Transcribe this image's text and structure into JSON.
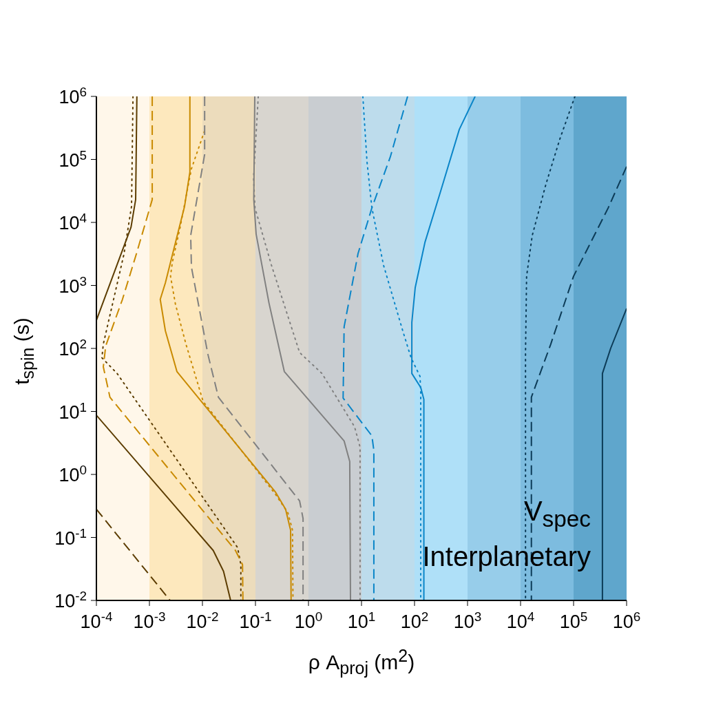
{
  "chart_data": {
    "type": "line",
    "xlabel": "ρ A$_{proj}$ (m$^{2}$)",
    "ylabel": "t$_{spin}$ (s)",
    "log": "xy",
    "xlim": [
      0.0001,
      1000000
    ],
    "ylim": [
      0.01,
      1000000
    ],
    "xticks": [
      {
        "value": 0.0001,
        "label": "10$^{-4}$"
      },
      {
        "value": 0.001,
        "label": "10$^{-3}$"
      },
      {
        "value": 0.01,
        "label": "10$^{-2}$"
      },
      {
        "value": 0.1,
        "label": "10$^{-1}$"
      },
      {
        "value": 1,
        "label": "10$^{0}$"
      },
      {
        "value": 10,
        "label": "10$^{1}$"
      },
      {
        "value": 100,
        "label": "10$^{2}$"
      },
      {
        "value": 1000,
        "label": "10$^{3}$"
      },
      {
        "value": 10000,
        "label": "10$^{4}$"
      },
      {
        "value": 100000,
        "label": "10$^{5}$"
      },
      {
        "value": 1000000,
        "label": "10$^{6}$"
      }
    ],
    "yticks": [
      {
        "value": 0.01,
        "label": "10$^{-2}$"
      },
      {
        "value": 0.1,
        "label": "10$^{-1}$"
      },
      {
        "value": 1,
        "label": "10$^{0}$"
      },
      {
        "value": 10,
        "label": "10$^{1}$"
      },
      {
        "value": 100,
        "label": "10$^{2}$"
      },
      {
        "value": 1000,
        "label": "10$^{3}$"
      },
      {
        "value": 10000,
        "label": "10$^{4}$"
      },
      {
        "value": 100000,
        "label": "10$^{5}$"
      },
      {
        "value": 1000000,
        "label": "10$^{6}$"
      }
    ],
    "bands": [
      {
        "axis": "x",
        "from": 0.0001,
        "to": 0.001,
        "color": "#fff7ea"
      },
      {
        "axis": "x",
        "from": 0.001,
        "to": 0.01,
        "color": "#fde8bd"
      },
      {
        "axis": "x",
        "from": 0.01,
        "to": 0.1,
        "color": "#ecdcbc"
      },
      {
        "axis": "x",
        "from": 0.1,
        "to": 1,
        "color": "#d8d5cf"
      },
      {
        "axis": "x",
        "from": 1,
        "to": 10,
        "color": "#c9cdd1"
      },
      {
        "axis": "x",
        "from": 10,
        "to": 100,
        "color": "#bddcec"
      },
      {
        "axis": "x",
        "from": 100,
        "to": 1000,
        "color": "#afe0f8"
      },
      {
        "axis": "x",
        "from": 1000,
        "to": 10000,
        "color": "#97cdea"
      },
      {
        "axis": "x",
        "from": 10000,
        "to": 100000,
        "color": "#7dbcdf"
      },
      {
        "axis": "x",
        "from": 100000,
        "to": 1000000,
        "color": "#5fa6cc"
      }
    ],
    "annotations": [
      "V$_{spec}$",
      "Interplanetary"
    ],
    "series": [
      {
        "color": "#5c3c00",
        "line_style": "solid",
        "x": [
          0.00058,
          0.00055,
          0.00045,
          0.0001
        ],
        "values": [
          1000000,
          23000,
          8400,
          280
        ]
      },
      {
        "color": "#5c3c00",
        "line_style": "solid",
        "x": [
          0.0001,
          0.016,
          0.025,
          0.034
        ],
        "values": [
          8.7,
          0.062,
          0.029,
          0.01
        ]
      },
      {
        "color": "#5c3c00",
        "line_style": "dotted",
        "x": [
          0.00049,
          0.00046,
          0.00033,
          0.000135,
          0.000127,
          0.000246,
          0.046,
          0.053,
          0.053
        ],
        "values": [
          1000000,
          18000,
          3100,
          117,
          71,
          40,
          0.069,
          0.037,
          0.01
        ]
      },
      {
        "color": "#5c3c00",
        "line_style": "dashed",
        "x": [
          0.0001,
          0.00245
        ],
        "values": [
          0.28,
          0.01
        ]
      },
      {
        "color": "#c98a00",
        "line_style": "solid",
        "x": [
          0.0058,
          0.0058,
          0.0046,
          0.002,
          0.0016,
          0.002,
          0.0033,
          0.24,
          0.37,
          0.46,
          0.47
        ],
        "values": [
          1000000,
          63000,
          18000,
          1100,
          600,
          190,
          43,
          0.52,
          0.28,
          0.13,
          0.01
        ]
      },
      {
        "color": "#c98a00",
        "line_style": "dotted",
        "x": [
          0.0109,
          0.0062,
          0.0038,
          0.0027,
          0.0025,
          0.0031,
          0.0049,
          0.0103,
          0.24,
          0.41,
          0.5,
          0.51
        ],
        "values": [
          280000,
          71000,
          8400,
          2300,
          1400,
          500,
          116,
          14.4,
          0.48,
          0.245,
          0.13,
          0.01
        ]
      },
      {
        "color": "#c98a00",
        "line_style": "dashed",
        "x": [
          0.00113,
          0.00113,
          0.00057,
          0.00031,
          0.00015,
          0.000135,
          0.00018,
          0.042,
          0.057,
          0.058
        ],
        "values": [
          1000000,
          23000,
          3200,
          600,
          110,
          51,
          16.8,
          0.062,
          0.037,
          0.01
        ]
      },
      {
        "color": "#808080",
        "line_style": "solid",
        "x": [
          0.097,
          0.093,
          0.103,
          0.18,
          0.35,
          4.7,
          6,
          6.2
        ],
        "values": [
          1000000,
          23000,
          6500,
          525,
          43,
          3.4,
          1.6,
          0.01
        ]
      },
      {
        "color": "#808080",
        "line_style": "dotted",
        "x": [
          0.113,
          0.092,
          0.098,
          0.2,
          0.68,
          1.8,
          7.4,
          9.4,
          9.4
        ],
        "values": [
          1000000,
          51000,
          17000,
          2100,
          86,
          40,
          5.7,
          2.7,
          0.01
        ]
      },
      {
        "color": "#808080",
        "line_style": "dashed",
        "x": [
          0.011,
          0.011,
          0.006,
          0.0062,
          0.0127,
          0.02,
          0.68,
          0.79,
          0.79
        ],
        "values": [
          1000000,
          120000,
          6200,
          1950,
          80,
          16.8,
          0.38,
          0.2,
          0.01
        ]
      },
      {
        "color": "#0a85c8",
        "line_style": "dotted",
        "x": [
          10.6,
          12.7,
          15.7,
          26,
          60,
          86,
          127,
          131,
          131
        ],
        "values": [
          1000000,
          92000,
          17000,
          2100,
          190,
          71,
          36,
          20,
          0.01
        ]
      },
      {
        "color": "#0a85c8",
        "line_style": "solid",
        "x": [
          1390,
          700,
          310,
          157,
          103,
          89,
          89,
          131,
          150,
          150
        ],
        "values": [
          1000000,
          300000,
          31000,
          4800,
          920,
          260,
          40,
          24,
          15.5,
          0.01
        ]
      },
      {
        "color": "#0a85c8",
        "line_style": "dashed",
        "x": [
          74,
          35,
          15.7,
          8.6,
          4.7,
          4.5,
          15.7,
          17.1,
          17.1
        ],
        "values": [
          1000000,
          110000,
          17000,
          3200,
          220,
          16.3,
          4.1,
          2.4,
          0.01
        ]
      },
      {
        "color": "#0c3b57",
        "line_style": "dotted",
        "x": [
          106000,
          55000,
          30000,
          16600,
          13000,
          12400,
          12400
        ],
        "values": [
          1000000,
          210000,
          40000,
          6200,
          1400,
          86,
          0.01
        ]
      },
      {
        "color": "#0c3b57",
        "line_style": "dashed",
        "x": [
          1000000,
          450000,
          100000,
          37000,
          16000,
          16000
        ],
        "values": [
          77000,
          17000,
          1400,
          116,
          16.8,
          0.01
        ]
      },
      {
        "color": "#0c3b57",
        "line_style": "solid",
        "x": [
          1000000,
          500000,
          350000,
          350000
        ],
        "values": [
          430,
          100,
          40,
          0.01
        ]
      }
    ]
  }
}
